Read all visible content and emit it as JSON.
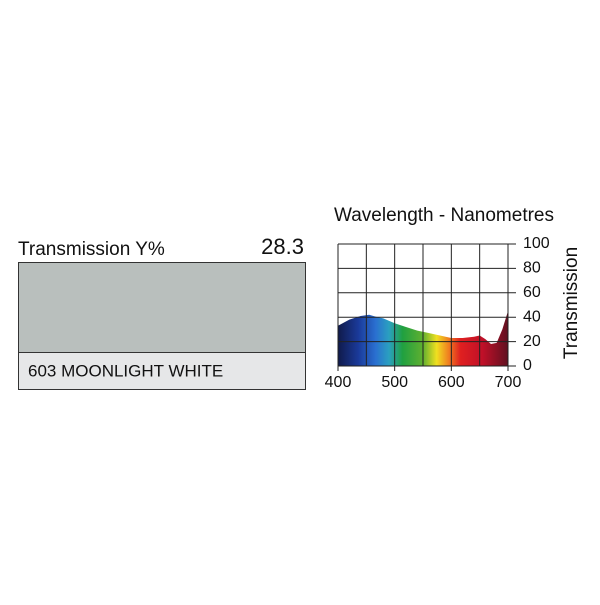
{
  "swatch": {
    "label": "Transmission Y%",
    "value": 28.3,
    "name": "603 MOONLIGHT WHITE"
  },
  "chart_data": {
    "type": "area",
    "title": "Wavelength - Nanometres",
    "y_label": "Transmission",
    "x": [
      400,
      420,
      440,
      455,
      470,
      480,
      500,
      520,
      540,
      560,
      580,
      600,
      620,
      640,
      650,
      660,
      670,
      680,
      690,
      700
    ],
    "values": [
      33,
      38,
      41,
      42,
      40,
      39,
      35,
      32,
      29,
      27,
      25,
      23,
      23,
      24,
      25,
      22,
      18,
      19,
      30,
      45
    ],
    "xlim": [
      400,
      700
    ],
    "ylim": [
      0,
      100
    ],
    "xticks": [
      400,
      500,
      600,
      700
    ],
    "xminor": [
      450,
      550,
      650
    ],
    "yticks": [
      0,
      20,
      40,
      60,
      80,
      100
    ],
    "grid": true
  }
}
